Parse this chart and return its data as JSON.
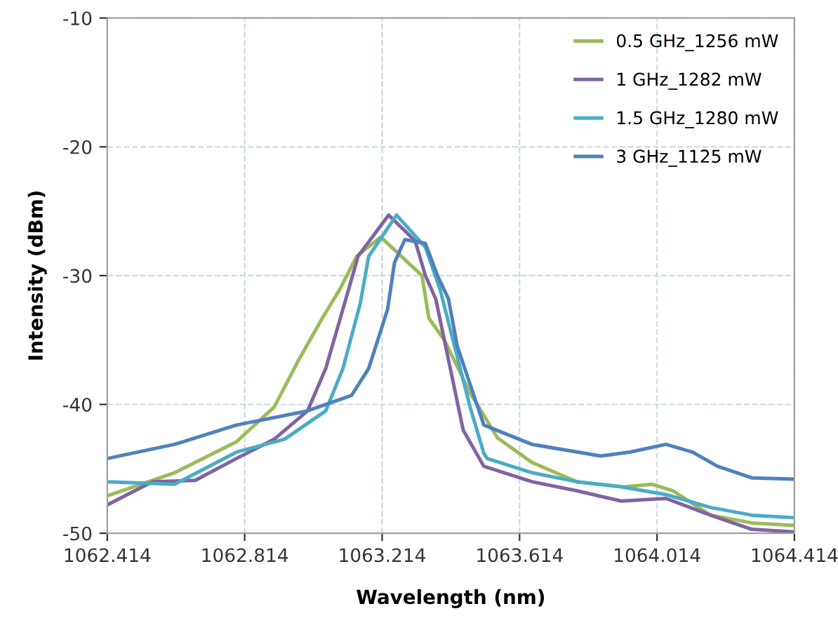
{
  "chart_data": {
    "type": "line",
    "xlabel": "Wavelength (nm)",
    "ylabel": "Intensity (dBm)",
    "xlim": [
      1062.414,
      1064.414
    ],
    "xticks": [
      1062.414,
      1062.814,
      1063.214,
      1063.614,
      1064.014,
      1064.414
    ],
    "ylim": [
      -50,
      -10
    ],
    "yticks": [
      -50,
      -40,
      -30,
      -20,
      -10
    ],
    "grid": true,
    "legend": "top right",
    "marker": "none",
    "line_style": "solid",
    "series": [
      {
        "name": "0.5 GHz_1256 mW",
        "color": "#9bbb59",
        "x": [
          1062.414,
          1062.61,
          1062.79,
          1062.9,
          1062.97,
          1063.04,
          1063.09,
          1063.14,
          1063.21,
          1063.33,
          1063.35,
          1063.395,
          1063.47,
          1063.55,
          1063.65,
          1063.78,
          1063.92,
          1064.0,
          1064.06,
          1064.17,
          1064.29,
          1064.414
        ],
        "values": [
          -47.1,
          -45.3,
          -42.9,
          -40.2,
          -36.6,
          -33.3,
          -31.1,
          -28.5,
          -27.0,
          -30.0,
          -33.3,
          -35.0,
          -39.1,
          -42.6,
          -44.5,
          -46.0,
          -46.4,
          -46.2,
          -46.7,
          -48.6,
          -49.2,
          -49.4
        ]
      },
      {
        "name": "1 GHz_1282 mW",
        "color": "#8064a2",
        "x": [
          1062.414,
          1062.545,
          1062.67,
          1062.79,
          1062.9,
          1062.997,
          1063.05,
          1063.1,
          1063.144,
          1063.233,
          1063.31,
          1063.34,
          1063.37,
          1063.45,
          1063.51,
          1063.65,
          1063.78,
          1063.91,
          1064.04,
          1064.17,
          1064.29,
          1064.414
        ],
        "values": [
          -47.8,
          -46.0,
          -45.9,
          -44.2,
          -42.7,
          -40.5,
          -37.2,
          -32.6,
          -28.5,
          -25.3,
          -27.3,
          -30.0,
          -31.8,
          -42.0,
          -44.8,
          -46.0,
          -46.7,
          -47.5,
          -47.3,
          -48.6,
          -49.7,
          -49.9
        ]
      },
      {
        "name": "1.5 GHz_1280 mW",
        "color": "#4bacc6",
        "x": [
          1062.414,
          1062.61,
          1062.79,
          1062.93,
          1063.05,
          1063.1,
          1063.15,
          1063.175,
          1063.256,
          1063.34,
          1063.383,
          1063.47,
          1063.51,
          1063.52,
          1063.65,
          1063.78,
          1063.91,
          1064.04,
          1064.17,
          1064.29,
          1064.414
        ],
        "values": [
          -46.0,
          -46.2,
          -43.7,
          -42.7,
          -40.5,
          -37.2,
          -32.2,
          -28.5,
          -25.3,
          -27.8,
          -31.1,
          -40.2,
          -43.8,
          -44.2,
          -45.3,
          -46.0,
          -46.4,
          -47.0,
          -48.0,
          -48.6,
          -48.8
        ]
      },
      {
        "name": "3 GHz_1125 mW",
        "color": "#4f81bd",
        "x": [
          1062.414,
          1062.61,
          1062.79,
          1062.997,
          1063.125,
          1063.175,
          1063.23,
          1063.25,
          1063.28,
          1063.34,
          1063.375,
          1063.407,
          1063.433,
          1063.51,
          1063.65,
          1063.85,
          1063.935,
          1064.04,
          1064.117,
          1064.19,
          1064.29,
          1064.414
        ],
        "values": [
          -44.2,
          -43.1,
          -41.6,
          -40.5,
          -39.3,
          -37.2,
          -32.6,
          -29.0,
          -27.2,
          -27.5,
          -30.0,
          -31.8,
          -35.5,
          -41.6,
          -43.1,
          -44.0,
          -43.7,
          -43.1,
          -43.7,
          -44.8,
          -45.7,
          -45.8
        ]
      }
    ]
  }
}
